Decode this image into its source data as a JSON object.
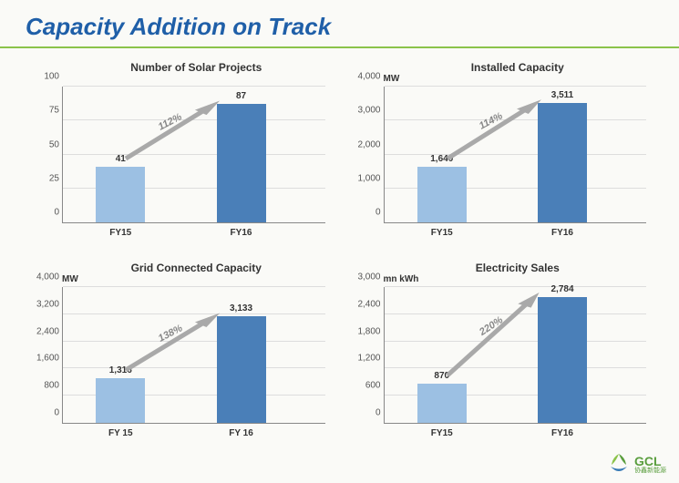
{
  "title": "Capacity Addition on Track",
  "logo": {
    "brand": "GCL",
    "sub": "协鑫新能源"
  },
  "colors": {
    "bar_light": "#9cc0e3",
    "bar_dark": "#4a7fb8",
    "arrow": "#a9a9a9",
    "title": "#1f5fa8",
    "rule": "#8bc34a"
  },
  "charts": [
    {
      "id": "solar-projects",
      "title": "Number of Solar Projects",
      "unit": "",
      "categories": [
        "FY15",
        "FY16"
      ],
      "values": [
        41,
        87
      ],
      "value_labels": [
        "41",
        "87"
      ],
      "ymax": 100,
      "yticks": [
        0,
        25,
        50,
        75,
        100
      ],
      "ytick_labels": [
        "0",
        "25",
        "50",
        "75",
        "100"
      ],
      "growth": "112%"
    },
    {
      "id": "installed-capacity",
      "title": "Installed Capacity",
      "unit": "MW",
      "categories": [
        "FY15",
        "FY16"
      ],
      "values": [
        1640,
        3511
      ],
      "value_labels": [
        "1,640",
        "3,511"
      ],
      "ymax": 4000,
      "yticks": [
        0,
        1000,
        2000,
        3000,
        4000
      ],
      "ytick_labels": [
        "0",
        "1,000",
        "2,000",
        "3,000",
        "4,000"
      ],
      "growth": "114%"
    },
    {
      "id": "grid-connected",
      "title": "Grid Connected Capacity",
      "unit": "MW",
      "categories": [
        "FY 15",
        "FY 16"
      ],
      "values": [
        1316,
        3133
      ],
      "value_labels": [
        "1,316",
        "3,133"
      ],
      "ymax": 4000,
      "yticks": [
        0,
        800,
        1600,
        2400,
        3200,
        4000
      ],
      "ytick_labels": [
        "0",
        "800",
        "1,600",
        "2,400",
        "3,200",
        "4,000"
      ],
      "growth": "138%"
    },
    {
      "id": "electricity-sales",
      "title": "Electricity Sales",
      "unit": "mn kWh",
      "categories": [
        "FY15",
        "FY16"
      ],
      "values": [
        870,
        2784
      ],
      "value_labels": [
        "870",
        "2,784"
      ],
      "ymax": 3000,
      "yticks": [
        0,
        600,
        1200,
        1800,
        2400,
        3000
      ],
      "ytick_labels": [
        "0",
        "600",
        "1,200",
        "1,800",
        "2,400",
        "3,000"
      ],
      "growth": "220%"
    }
  ]
}
